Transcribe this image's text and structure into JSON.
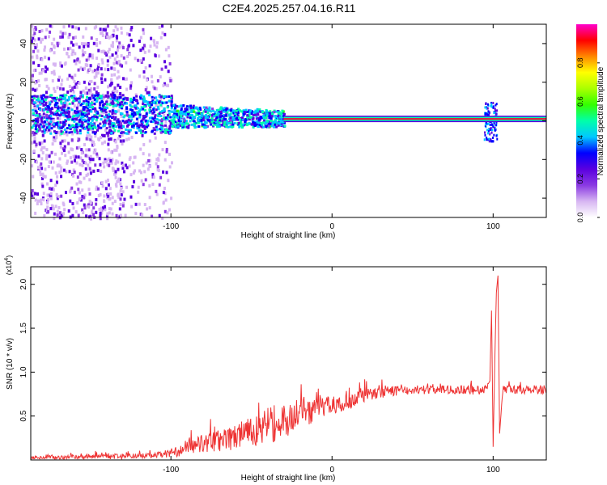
{
  "title": "C2E4.2025.257.04.16.R11",
  "colors": {
    "snr_line": "#ee3333",
    "background": "#ffffff",
    "axis": "#000000",
    "spectrogram_line": "#ee1133"
  },
  "chart_data": [
    {
      "type": "heatmap",
      "name": "spectrogram",
      "xlabel": "Height of straight line (km)",
      "ylabel": "Frequency (Hz)",
      "xlim": [
        -187,
        133
      ],
      "ylim": [
        -50,
        50
      ],
      "xticks": [
        -100,
        0,
        100
      ],
      "xtick_labels": [
        "-100",
        "0",
        "100"
      ],
      "yticks": [
        -40,
        -20,
        0,
        20,
        40
      ],
      "ytick_labels": [
        "-40",
        "-20",
        "0",
        "20",
        "40"
      ],
      "colorbar": {
        "label": "Normalized spectral amplitude",
        "range": [
          0,
          1
        ],
        "ticks": [
          0.0,
          0.2,
          0.4,
          0.6,
          0.8
        ],
        "tick_labels": [
          "0.0",
          "0.2",
          "0.4",
          "0.6",
          "0.8"
        ],
        "colormap": [
          "#ffffff",
          "#d7b6f2",
          "#8a3ae2",
          "#5a00e0",
          "#0000ff",
          "#00c8ff",
          "#00ffaa",
          "#33ff00",
          "#aaff00",
          "#ffff00",
          "#ff8800",
          "#ff0000",
          "#ff00cc"
        ]
      },
      "features": [
        {
          "label": "broadband noise",
          "x_range": [
            -187,
            -100
          ],
          "freq_range": [
            -50,
            50
          ],
          "amplitude": 0.1
        },
        {
          "label": "central band",
          "x_range": [
            -187,
            -30
          ],
          "freq_range": [
            -8,
            12
          ],
          "amplitude": 0.4
        },
        {
          "label": "carrier line",
          "x_range": [
            -30,
            133
          ],
          "freq_hz": 1,
          "amplitude": 0.95
        },
        {
          "label": "disturbance",
          "x_center": 98,
          "freq_range": [
            -10,
            10
          ],
          "amplitude": 0.3
        }
      ]
    },
    {
      "type": "line",
      "name": "snr",
      "xlabel": "Height of straight line (km)",
      "ylabel": "SNR (10 * v/v)",
      "y_multiplier_label": "(x10",
      "y_multiplier_exp": "4",
      "y_multiplier_close": ")",
      "xlim": [
        -187,
        133
      ],
      "ylim": [
        0,
        22000
      ],
      "xticks": [
        -100,
        0,
        100
      ],
      "xtick_labels": [
        "-100",
        "0",
        "100"
      ],
      "yticks": [
        5000,
        10000,
        15000,
        20000
      ],
      "ytick_labels": [
        "0.5",
        "1.0",
        "1.5",
        "2.0"
      ],
      "series": [
        {
          "name": "SNR",
          "x": [
            -187,
            -170,
            -150,
            -130,
            -110,
            -100,
            -95,
            -85,
            -75,
            -65,
            -55,
            -45,
            -38,
            -32,
            -25,
            -15,
            -5,
            5,
            15,
            25,
            35,
            50,
            65,
            80,
            90,
            95,
            98,
            99,
            100,
            101,
            102,
            103,
            104,
            106,
            110,
            120,
            133
          ],
          "values": [
            300,
            300,
            400,
            400,
            500,
            800,
            1000,
            1700,
            2000,
            2300,
            2800,
            3300,
            4000,
            4300,
            4700,
            5300,
            6000,
            6300,
            7000,
            7500,
            7800,
            8000,
            8000,
            8000,
            7900,
            8000,
            9000,
            17000,
            1500,
            11000,
            19000,
            21000,
            3000,
            8000,
            8000,
            8000,
            8000
          ],
          "noise_amplitude": [
            200,
            200,
            300,
            300,
            300,
            500,
            600,
            900,
            1100,
            1300,
            1600,
            1900,
            2200,
            2000,
            1800,
            1400,
            1200,
            1000,
            900,
            700,
            600,
            500,
            500,
            500,
            500,
            600,
            0,
            0,
            0,
            0,
            0,
            0,
            0,
            600,
            500,
            500,
            500
          ]
        }
      ]
    }
  ]
}
